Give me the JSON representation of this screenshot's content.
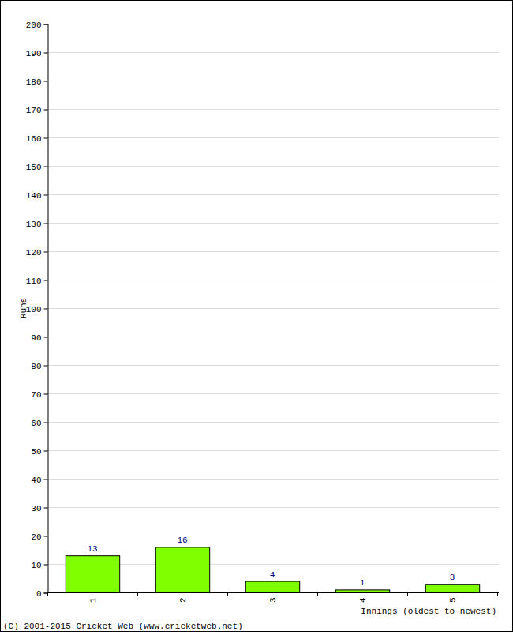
{
  "chart_data": {
    "type": "bar",
    "x_label": "Innings (oldest to newest)",
    "y_label": "Runs",
    "categories": [
      "1",
      "2",
      "3",
      "4",
      "5"
    ],
    "values": [
      13,
      16,
      4,
      1,
      3
    ],
    "color": "#80ff00",
    "ylim": [
      0,
      200
    ],
    "yticks": [
      0,
      10,
      20,
      30,
      40,
      50,
      60,
      70,
      80,
      90,
      100,
      110,
      120,
      130,
      140,
      150,
      160,
      170,
      180,
      190,
      200
    ],
    "grid": true,
    "data_labels": true,
    "annotations": [
      "(C) 2001-2015 Cricket Web (www.cricketweb.net)"
    ]
  }
}
